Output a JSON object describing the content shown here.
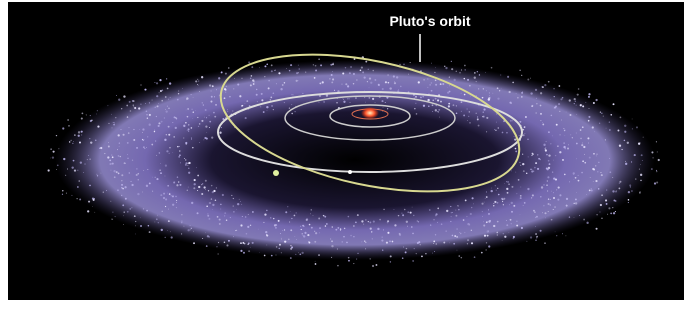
{
  "label": "Pluto's orbit"
}
